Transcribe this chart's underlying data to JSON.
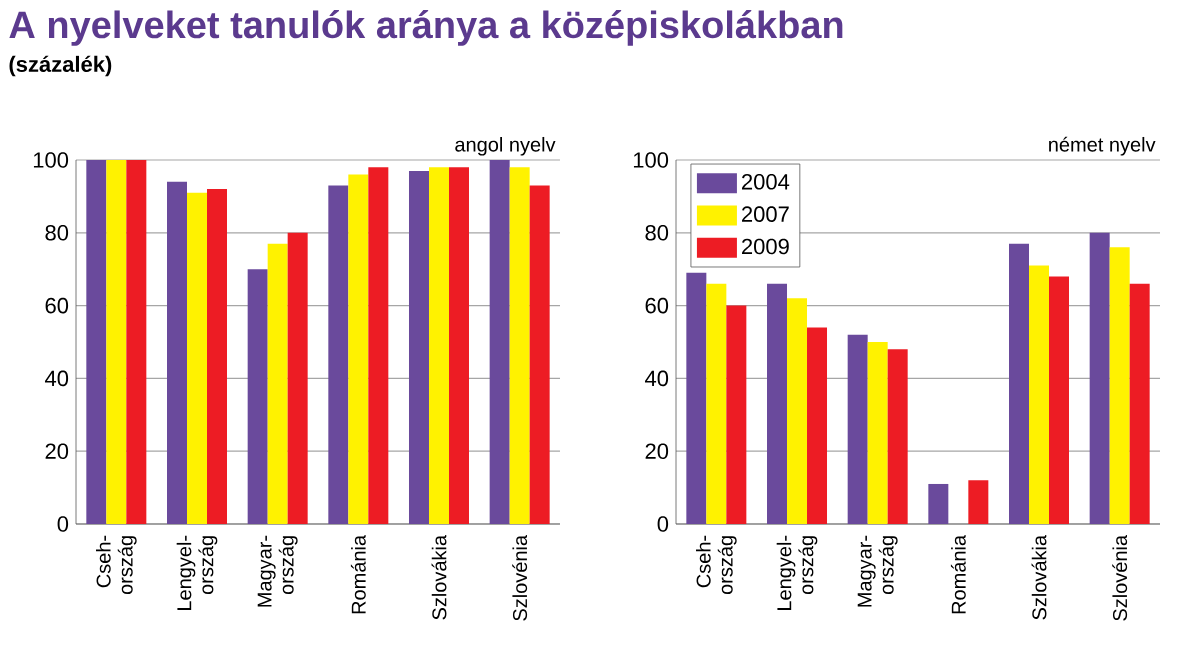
{
  "chart_data": [
    {
      "type": "bar",
      "title": "A nyelveket tanulók aránya a középiskolákban",
      "subtitle": "(százalék)",
      "annotations": [
        "angol nyelv"
      ],
      "categories": [
        "Cseh- ország",
        "Lengyel- ország",
        "Magyar- ország",
        "Románia",
        "Szlovákia",
        "Szlovénia"
      ],
      "series": [
        {
          "color": "#6a4a9c",
          "values": [
            100,
            94,
            70,
            93,
            97,
            100
          ]
        },
        {
          "color": "#fff200",
          "values": [
            100,
            91,
            77,
            96,
            98,
            98
          ]
        },
        {
          "color": "#ed1c24",
          "values": [
            100,
            92,
            80,
            98,
            98,
            93
          ]
        }
      ],
      "ylim": [
        0,
        100
      ],
      "yticks": [
        0,
        20,
        40,
        60,
        80,
        100
      ],
      "grid": "y",
      "legend": false
    },
    {
      "type": "bar",
      "annotations": [
        "német nyelv"
      ],
      "categories": [
        "Cseh- ország",
        "Lengyel- ország",
        "Magyar- ország",
        "Románia",
        "Szlovákia",
        "Szlovénia"
      ],
      "series": [
        {
          "name": "2004",
          "color": "#6a4a9c",
          "values": [
            69,
            66,
            52,
            11,
            77,
            80
          ]
        },
        {
          "name": "2007",
          "color": "#fff200",
          "values": [
            66,
            62,
            50,
            null,
            71,
            76
          ]
        },
        {
          "name": "2009",
          "color": "#ed1c24",
          "values": [
            60,
            54,
            48,
            12,
            68,
            66
          ]
        }
      ],
      "ylim": [
        0,
        100
      ],
      "yticks": [
        0,
        20,
        40,
        60,
        80,
        100
      ],
      "grid": "y",
      "legend": "top left"
    }
  ]
}
